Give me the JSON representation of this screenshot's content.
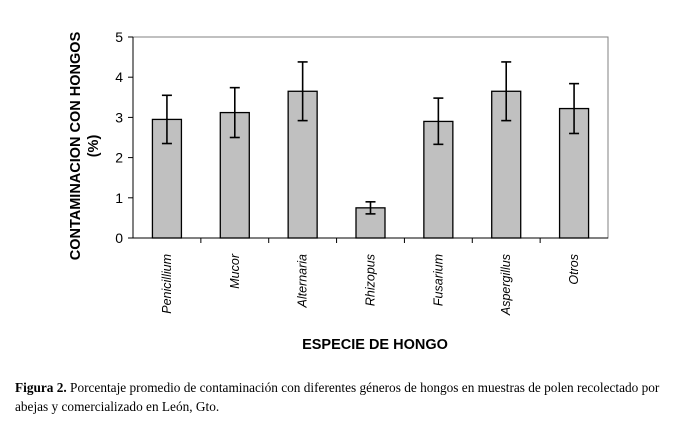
{
  "chart_data": {
    "type": "bar",
    "categories": [
      "Penicillium",
      "Mucor",
      "Alternaria",
      "Rhizopus",
      "Fusarium",
      "Aspergillus",
      "Otros"
    ],
    "values": [
      2.95,
      3.12,
      3.65,
      0.75,
      2.9,
      3.65,
      3.22
    ],
    "error_low": [
      2.35,
      2.5,
      2.92,
      0.6,
      2.33,
      2.92,
      2.6
    ],
    "error_high": [
      3.55,
      3.74,
      4.38,
      0.9,
      3.48,
      4.38,
      3.84
    ],
    "xlabel": "ESPECIE DE HONGO",
    "ylabel_line1": "CONTAMINACION CON HONGOS",
    "ylabel_line2": "(%)",
    "ylim": [
      0,
      5
    ],
    "yticks": [
      "0",
      "1",
      "2",
      "3",
      "4",
      "5"
    ],
    "bar_color": "#c0c0c0",
    "grid": false
  },
  "caption": {
    "label": "Figura 2.",
    "text": "Porcentaje promedio de contaminación con diferentes géneros de hongos en muestras de polen recolectado por abejas y comercializado en León, Gto."
  }
}
